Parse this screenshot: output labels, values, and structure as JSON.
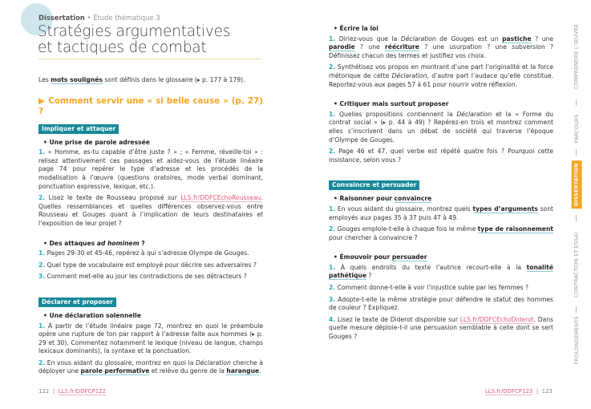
{
  "header": {
    "section": "Dissertation",
    "subtitle": "Étude thématique 3",
    "title_line1": "Stratégies argumentatives",
    "title_line2": "et tactiques de combat"
  },
  "left": {
    "note": [
      {
        "t": "Les "
      },
      {
        "t": "mots soulignés",
        "s": "gloss"
      },
      {
        "t": " sont définis dans le glossaire (▸ p. 177 à 179)."
      }
    ],
    "question": "▶ Comment servir une « si belle cause » (p. 27) ?",
    "sections": [
      {
        "tag": "Impliquer et attaquer",
        "groups": [
          {
            "bullet": [
              {
                "t": "Une prise de parole adressée"
              }
            ],
            "items": [
              {
                "n": "1.",
                "parts": [
                  {
                    "t": " « Homme, es-tu capable d’être juste ? » ; « Femme, réveille-toi » : relisez attentivement ces passages et aidez-vous de l’étude linéaire page 74 pour repérer le type d’adresse et les procédés de la modalisation à l’œuvre (questions oratoires, mode verbal dominant, ponctuation expressive, lexique, etc.)."
                  }
                ]
              },
              {
                "n": "2.",
                "parts": [
                  {
                    "t": " Lisez le texte de Rousseau proposé sur "
                  },
                  {
                    "t": "LLS.fr/DDFCEchoRousseau",
                    "s": "link"
                  },
                  {
                    "t": ". Quelles ressemblances et quelles différences observez-vous entre Rousseau et Gouges quant à l’implication de leurs destinataires et l’exposition de leur projet ?"
                  }
                ]
              }
            ]
          },
          {
            "bullet": [
              {
                "t": "Des attaques "
              },
              {
                "t": "ad hominem",
                "s": "em"
              },
              {
                "t": " ?",
                "s": "plain"
              }
            ],
            "items": [
              {
                "n": "1.",
                "parts": [
                  {
                    "t": " Pages 29-30 et 45-46, repérez à qui s’adresse Olympe de Gouges."
                  }
                ]
              },
              {
                "n": "2.",
                "parts": [
                  {
                    "t": " Quel type de vocabulaire est employé pour décrire ses adversaires ?"
                  }
                ]
              },
              {
                "n": "3.",
                "parts": [
                  {
                    "t": " Comment met-elle au jour les contradictions de ses détracteurs ?"
                  }
                ]
              }
            ]
          }
        ]
      },
      {
        "tag": "Déclarer et proposer",
        "groups": [
          {
            "bullet": [
              {
                "t": "Une déclaration solennelle"
              }
            ],
            "items": [
              {
                "n": "1.",
                "parts": [
                  {
                    "t": " À partir de l’étude linéaire page 72, montrez en quoi le préambule opère une rupture de ton par rapport à l’adresse faite aux hommes (▸ p. 29 et 30). Commentez notamment le lexique (niveau de langue, champs lexicaux dominants), la syntaxe et la ponctuation."
                  }
                ]
              },
              {
                "n": "2.",
                "parts": [
                  {
                    "t": " En vous aidant du glossaire, montrez en quoi la "
                  },
                  {
                    "t": "Déclaration",
                    "s": "em"
                  },
                  {
                    "t": " cherche à déployer une "
                  },
                  {
                    "t": "parole performative",
                    "s": "gloss"
                  },
                  {
                    "t": " et relève du genre de la "
                  },
                  {
                    "t": "harangue",
                    "s": "gloss"
                  },
                  {
                    "t": "."
                  }
                ]
              }
            ]
          }
        ]
      }
    ]
  },
  "right": {
    "sections": [
      {
        "tag": "",
        "groups": [
          {
            "bullet": [
              {
                "t": "Écrire la loi"
              }
            ],
            "items": [
              {
                "n": "1.",
                "parts": [
                  {
                    "t": " Diriez-vous que la "
                  },
                  {
                    "t": "Déclaration",
                    "s": "em"
                  },
                  {
                    "t": " de Gouges est un "
                  },
                  {
                    "t": "pastiche",
                    "s": "gloss"
                  },
                  {
                    "t": " ? une "
                  },
                  {
                    "t": "parodie",
                    "s": "gloss"
                  },
                  {
                    "t": " ? une "
                  },
                  {
                    "t": "réécriture",
                    "s": "gloss"
                  },
                  {
                    "t": " ? une usurpation ? une subversion ? Définissez chacun des termes et justifiez vos choix."
                  }
                ]
              },
              {
                "n": "2.",
                "parts": [
                  {
                    "t": " Synthétisez vos propos en montrant d’une part l’originalité et la force rhétorique de cette "
                  },
                  {
                    "t": "Déclaration",
                    "s": "em"
                  },
                  {
                    "t": ", d’autre part l’audace qu’elle constitue. Reportez-vous aux pages 57 à 61 pour nourrir votre réflexion."
                  }
                ]
              }
            ]
          },
          {
            "bullet": [
              {
                "t": "Critiquer mais surtout proposer"
              }
            ],
            "items": [
              {
                "n": "1.",
                "parts": [
                  {
                    "t": " Quelles propositions contiennent la "
                  },
                  {
                    "t": "Déclaration",
                    "s": "em"
                  },
                  {
                    "t": " et la « Forme du contrat social » (▸ p. 44 à 49) ? Repérez-en trois et montrez comment elles s’inscrivent dans un débat de société qui traverse l’époque d’Olympe de Gouges."
                  }
                ]
              },
              {
                "n": "2.",
                "parts": [
                  {
                    "t": " Page 46 et 47, quel verbe est répété quatre fois ? Pourquoi cette insistance, selon vous ?"
                  }
                ]
              }
            ]
          }
        ]
      },
      {
        "tag": "Convaincre et persuader",
        "groups": [
          {
            "bullet": [
              {
                "t": "Raisonner pour "
              },
              {
                "t": "convaincre",
                "s": "gloss"
              }
            ],
            "items": [
              {
                "n": "1.",
                "parts": [
                  {
                    "t": " En vous aidant du glossaire, montrez quels "
                  },
                  {
                    "t": "types d’arguments",
                    "s": "gloss"
                  },
                  {
                    "t": " sont employés aux pages 35 à 37 puis 47 à 49."
                  }
                ]
              },
              {
                "n": "2.",
                "parts": [
                  {
                    "t": " Gouges emploie-t-elle à chaque fois le même "
                  },
                  {
                    "t": "type de raisonnement",
                    "s": "gloss"
                  },
                  {
                    "t": " pour chercher à convaincre ?"
                  }
                ]
              }
            ]
          },
          {
            "bullet": [
              {
                "t": "Émouvoir pour "
              },
              {
                "t": "persuader",
                "s": "gloss"
              }
            ],
            "items": [
              {
                "n": "1.",
                "parts": [
                  {
                    "t": " À quels endroits du texte l’autrice recourt-elle à la "
                  },
                  {
                    "t": "tonalité pathétique",
                    "s": "gloss"
                  },
                  {
                    "t": " ?"
                  }
                ]
              },
              {
                "n": "2.",
                "parts": [
                  {
                    "t": " Comment donne-t-elle à voir l’injustice subie par les femmes ?"
                  }
                ]
              },
              {
                "n": "3.",
                "parts": [
                  {
                    "t": " Adopte-t-elle la même stratégie pour défendre le statut des hommes de couleur ? Expliquez."
                  }
                ]
              },
              {
                "n": "4.",
                "parts": [
                  {
                    "t": " Lisez le texte de Diderot disponible sur "
                  },
                  {
                    "t": "LLS.fr/DDFCEchoDiderot",
                    "s": "link"
                  },
                  {
                    "t": ". Dans quelle mesure déploie-t-il une persuasion semblable à celle dont se sert Gouges ?"
                  }
                ]
              }
            ]
          }
        ]
      }
    ]
  },
  "footer": {
    "left_page": "122",
    "left_link": "LLS.fr/DDFCP122",
    "right_page": "123",
    "right_link": "LLS.fr/DDFCP123",
    "sep": "|"
  },
  "sidebar": {
    "items": [
      "COMPRENDRE L’ŒUVRE",
      "PARCOURS",
      "DISSERTATION",
      "CONTRACTION ET ESSAI",
      "PROLONGEMENTS"
    ],
    "active": "DISSERTATION"
  },
  "colors": {
    "accent_orange": "#f5a623",
    "tag_teal": "#17889a",
    "number_blue": "#2ca6b8",
    "link_pink": "#e05a7a"
  }
}
